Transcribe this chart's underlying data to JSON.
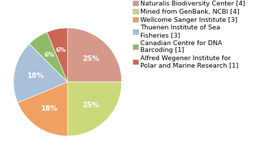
{
  "labels": [
    "Naturalis Biodiversity Center [4]",
    "Mined from GenBank, NCBI [4]",
    "Wellcome Sanger Institute [3]",
    "Thuenen Institute of Sea\nFisheries [3]",
    "Canadian Centre for DNA\nBarcoding [1]",
    "Alfred Wegener Institute for\nPolar and Marine Research [1]"
  ],
  "values": [
    4,
    4,
    3,
    3,
    1,
    1
  ],
  "colors": [
    "#d4998a",
    "#ccd97a",
    "#f0a060",
    "#a8c0d8",
    "#8fba6a",
    "#cc6655"
  ],
  "pct_labels": [
    "25%",
    "25%",
    "18%",
    "18%",
    "6%",
    "6%"
  ],
  "background_color": "#ffffff",
  "fontsize_pct": 7.5,
  "fontsize_legend": 6.8
}
